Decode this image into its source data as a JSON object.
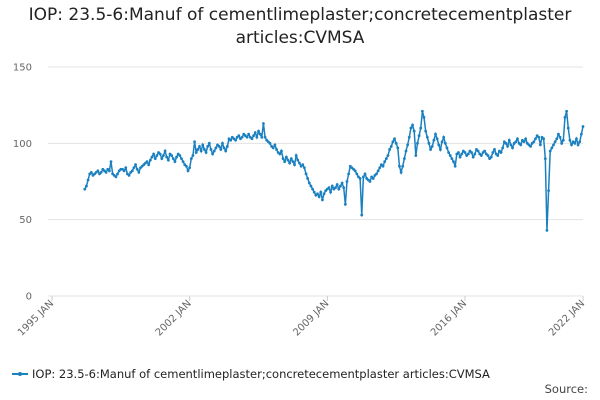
{
  "chart_data": {
    "type": "line",
    "title": "IOP: 23.5-6:Manuf of cementlimeplaster;concretecementplaster articles:CVMSA",
    "source_label": "Source:",
    "x": [
      "1996-09",
      "1996-10",
      "1996-11",
      "1996-12",
      "1997-01",
      "1997-02",
      "1997-03",
      "1997-04",
      "1997-05",
      "1997-06",
      "1997-07",
      "1997-08",
      "1997-09",
      "1997-10",
      "1997-11",
      "1997-12",
      "1998-01",
      "1998-02",
      "1998-03",
      "1998-04",
      "1998-05",
      "1998-06",
      "1998-07",
      "1998-08",
      "1998-09",
      "1998-10",
      "1998-11",
      "1998-12",
      "1999-01",
      "1999-02",
      "1999-03",
      "1999-04",
      "1999-05",
      "1999-06",
      "1999-07",
      "1999-08",
      "1999-09",
      "1999-10",
      "1999-11",
      "1999-12",
      "2000-01",
      "2000-02",
      "2000-03",
      "2000-04",
      "2000-05",
      "2000-06",
      "2000-07",
      "2000-08",
      "2000-09",
      "2000-10",
      "2000-11",
      "2000-12",
      "2001-01",
      "2001-02",
      "2001-03",
      "2001-04",
      "2001-05",
      "2001-06",
      "2001-07",
      "2001-08",
      "2001-09",
      "2001-10",
      "2001-11",
      "2001-12",
      "2002-01",
      "2002-02",
      "2002-03",
      "2002-04",
      "2002-05",
      "2002-06",
      "2002-07",
      "2002-08",
      "2002-09",
      "2002-10",
      "2002-11",
      "2002-12",
      "2003-01",
      "2003-02",
      "2003-03",
      "2003-04",
      "2003-05",
      "2003-06",
      "2003-07",
      "2003-08",
      "2003-09",
      "2003-10",
      "2003-11",
      "2003-12",
      "2004-01",
      "2004-02",
      "2004-03",
      "2004-04",
      "2004-05",
      "2004-06",
      "2004-07",
      "2004-08",
      "2004-09",
      "2004-10",
      "2004-11",
      "2004-12",
      "2005-01",
      "2005-02",
      "2005-03",
      "2005-04",
      "2005-05",
      "2005-06",
      "2005-07",
      "2005-08",
      "2005-09",
      "2005-10",
      "2005-11",
      "2005-12",
      "2006-01",
      "2006-02",
      "2006-03",
      "2006-04",
      "2006-05",
      "2006-06",
      "2006-07",
      "2006-08",
      "2006-09",
      "2006-10",
      "2006-11",
      "2006-12",
      "2007-01",
      "2007-02",
      "2007-03",
      "2007-04",
      "2007-05",
      "2007-06",
      "2007-07",
      "2007-08",
      "2007-09",
      "2007-10",
      "2007-11",
      "2007-12",
      "2008-01",
      "2008-02",
      "2008-03",
      "2008-04",
      "2008-05",
      "2008-06",
      "2008-07",
      "2008-08",
      "2008-09",
      "2008-10",
      "2008-11",
      "2008-12",
      "2009-01",
      "2009-02",
      "2009-03",
      "2009-04",
      "2009-05",
      "2009-06",
      "2009-07",
      "2009-08",
      "2009-09",
      "2009-10",
      "2009-11",
      "2009-12",
      "2010-01",
      "2010-02",
      "2010-03",
      "2010-04",
      "2010-05",
      "2010-06",
      "2010-07",
      "2010-08",
      "2010-09",
      "2010-10",
      "2010-11",
      "2010-12",
      "2011-01",
      "2011-02",
      "2011-03",
      "2011-04",
      "2011-05",
      "2011-06",
      "2011-07",
      "2011-08",
      "2011-09",
      "2011-10",
      "2011-11",
      "2011-12",
      "2012-01",
      "2012-02",
      "2012-03",
      "2012-04",
      "2012-05",
      "2012-06",
      "2012-07",
      "2012-08",
      "2012-09",
      "2012-10",
      "2012-11",
      "2012-12",
      "2013-01",
      "2013-02",
      "2013-03",
      "2013-04",
      "2013-05",
      "2013-06",
      "2013-07",
      "2013-08",
      "2013-09",
      "2013-10",
      "2013-11",
      "2013-12",
      "2014-01",
      "2014-02",
      "2014-03",
      "2014-04",
      "2014-05",
      "2014-06",
      "2014-07",
      "2014-08",
      "2014-09",
      "2014-10",
      "2014-11",
      "2014-12",
      "2015-01",
      "2015-02",
      "2015-03",
      "2015-04",
      "2015-05",
      "2015-06",
      "2015-07",
      "2015-08",
      "2015-09",
      "2015-10",
      "2015-11",
      "2015-12",
      "2016-01",
      "2016-02",
      "2016-03",
      "2016-04",
      "2016-05",
      "2016-06",
      "2016-07",
      "2016-08",
      "2016-09",
      "2016-10",
      "2016-11",
      "2016-12",
      "2017-01",
      "2017-02",
      "2017-03",
      "2017-04",
      "2017-05",
      "2017-06",
      "2017-07",
      "2017-08",
      "2017-09",
      "2017-10",
      "2017-11",
      "2017-12",
      "2018-01",
      "2018-02",
      "2018-03",
      "2018-04",
      "2018-05",
      "2018-06",
      "2018-07",
      "2018-08",
      "2018-09",
      "2018-10",
      "2018-11",
      "2018-12",
      "2019-01",
      "2019-02",
      "2019-03",
      "2019-04",
      "2019-05",
      "2019-06",
      "2019-07",
      "2019-08",
      "2019-09",
      "2019-10",
      "2019-11",
      "2019-12",
      "2020-01",
      "2020-02",
      "2020-03",
      "2020-04",
      "2020-05",
      "2020-06",
      "2020-07",
      "2020-08",
      "2020-09",
      "2020-10",
      "2020-11",
      "2020-12",
      "2021-01",
      "2021-02",
      "2021-03",
      "2021-04",
      "2021-05",
      "2021-06",
      "2021-07",
      "2021-08",
      "2021-09",
      "2021-10",
      "2021-11",
      "2021-12",
      "2022-01"
    ],
    "series": [
      {
        "name": "IOP: 23.5-6:Manuf of cementlimeplaster;concretecementplaster articles:CVMSA",
        "color": "#1a80bf",
        "values": [
          70,
          72,
          76,
          80,
          81,
          79,
          80,
          81,
          82,
          80,
          81,
          83,
          82,
          81,
          83,
          82,
          88,
          80,
          79,
          78,
          80,
          82,
          83,
          83,
          82,
          84,
          80,
          79,
          81,
          82,
          84,
          86,
          83,
          81,
          84,
          85,
          86,
          87,
          88,
          86,
          89,
          91,
          93,
          90,
          92,
          94,
          93,
          90,
          92,
          95,
          91,
          89,
          93,
          92,
          90,
          88,
          91,
          93,
          92,
          90,
          88,
          86,
          85,
          82,
          84,
          90,
          92,
          101,
          94,
          96,
          98,
          95,
          99,
          96,
          94,
          98,
          100,
          96,
          93,
          95,
          97,
          99,
          98,
          96,
          100,
          97,
          95,
          98,
          103,
          102,
          104,
          103,
          102,
          104,
          105,
          103,
          104,
          106,
          105,
          104,
          106,
          104,
          103,
          105,
          107,
          104,
          108,
          106,
          104,
          113,
          104,
          102,
          101,
          100,
          98,
          97,
          99,
          96,
          94,
          93,
          95,
          90,
          88,
          91,
          89,
          87,
          90,
          88,
          86,
          92,
          89,
          87,
          85,
          86,
          84,
          80,
          77,
          74,
          72,
          70,
          68,
          66,
          67,
          65,
          68,
          63,
          67,
          69,
          70,
          71,
          68,
          72,
          70,
          71,
          73,
          70,
          72,
          74,
          71,
          60,
          75,
          80,
          85,
          84,
          83,
          82,
          80,
          78,
          77,
          53,
          78,
          80,
          77,
          76,
          75,
          78,
          77,
          79,
          80,
          82,
          84,
          86,
          85,
          88,
          90,
          92,
          96,
          98,
          101,
          103,
          100,
          97,
          85,
          81,
          85,
          90,
          95,
          99,
          104,
          110,
          112,
          108,
          92,
          100,
          105,
          110,
          121,
          117,
          108,
          104,
          100,
          96,
          98,
          102,
          106,
          103,
          99,
          96,
          101,
          104,
          100,
          97,
          94,
          92,
          90,
          88,
          85,
          93,
          94,
          91,
          93,
          95,
          94,
          92,
          93,
          95,
          94,
          91,
          93,
          96,
          95,
          93,
          92,
          94,
          95,
          93,
          92,
          90,
          91,
          94,
          96,
          93,
          92,
          95,
          94,
          97,
          101,
          100,
          98,
          102,
          99,
          97,
          100,
          101,
          103,
          100,
          99,
          102,
          101,
          103,
          100,
          99,
          98,
          100,
          101,
          103,
          105,
          104,
          99,
          104,
          103,
          90,
          43,
          69,
          95,
          97,
          99,
          101,
          103,
          106,
          104,
          100,
          102,
          117,
          121,
          110,
          102,
          99,
          101,
          100,
          103,
          99,
          101,
          106,
          111
        ]
      }
    ],
    "xlim": [
      "1995-01",
      "2022-01"
    ],
    "xticks": [
      {
        "value": "1995-01",
        "label": "1995 JAN"
      },
      {
        "value": "2002-01",
        "label": "2002 JAN"
      },
      {
        "value": "2009-01",
        "label": "2009 JAN"
      },
      {
        "value": "2016-01",
        "label": "2016 JAN"
      },
      {
        "value": "2022-01",
        "label": "2022 JAN"
      }
    ],
    "ylim": [
      0,
      150
    ],
    "yticks": [
      0,
      50,
      100,
      150
    ],
    "grid": true
  }
}
